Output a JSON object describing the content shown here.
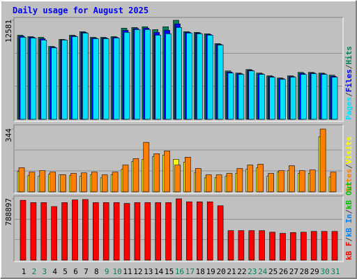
{
  "chart_data": [
    {
      "type": "bar",
      "title": "Daily usage for August 2025",
      "categories": [
        "1",
        "2",
        "3",
        "4",
        "5",
        "6",
        "7",
        "8",
        "9",
        "10",
        "11",
        "12",
        "13",
        "14",
        "15",
        "16",
        "17",
        "18",
        "19",
        "20",
        "21",
        "22",
        "23",
        "24",
        "25",
        "26",
        "27",
        "28",
        "29",
        "30",
        "31"
      ],
      "category_colors": [
        "#000000",
        "#00805c",
        "#00805c",
        "#000000",
        "#000000",
        "#000000",
        "#000000",
        "#000000",
        "#00805c",
        "#00805c",
        "#000000",
        "#000000",
        "#000000",
        "#000000",
        "#000000",
        "#00805c",
        "#00805c",
        "#000000",
        "#000000",
        "#000000",
        "#000000",
        "#000000",
        "#00805c",
        "#00805c",
        "#000000",
        "#000000",
        "#000000",
        "#000000",
        "#000000",
        "#00805c",
        "#00805c"
      ],
      "ylim": [
        0,
        12581
      ],
      "yticks": [
        12581
      ],
      "legend_separator": "/",
      "series": [
        {
          "name": "Hits",
          "color": "#00805c",
          "values": [
            10680,
            10500,
            10410,
            9260,
            10150,
            10680,
            11130,
            10410,
            10410,
            10500,
            11570,
            11660,
            11750,
            11390,
            11750,
            12581,
            11130,
            11040,
            10860,
            9610,
            6140,
            5870,
            6320,
            5870,
            5520,
            5250,
            5520,
            5960,
            5960,
            5870,
            5610
          ]
        },
        {
          "name": "Files",
          "color": "#0000ff",
          "values": [
            10550,
            10410,
            10240,
            9170,
            10100,
            10590,
            11040,
            10320,
            10320,
            10410,
            11300,
            11520,
            11570,
            11030,
            11300,
            12120,
            11040,
            10950,
            10770,
            9520,
            6000,
            5780,
            6230,
            5780,
            5430,
            5160,
            5430,
            5830,
            5870,
            5780,
            5470
          ]
        },
        {
          "name": "Pages",
          "color": "#00e0ff",
          "values": [
            10410,
            10320,
            10060,
            9080,
            10060,
            10500,
            10950,
            10240,
            10240,
            10320,
            11040,
            11390,
            11390,
            10680,
            10860,
            11660,
            10950,
            10860,
            10680,
            9430,
            5870,
            5700,
            6140,
            5700,
            5340,
            5070,
            5340,
            5700,
            5790,
            5700,
            5340
          ]
        }
      ]
    },
    {
      "type": "bar",
      "ylim": [
        0,
        344
      ],
      "yticks": [
        344
      ],
      "legend_separator": "/",
      "series": [
        {
          "name": "Visits",
          "color": "#ffff00",
          "values": [
            112,
            89,
            85,
            97,
            93,
            89,
            85,
            93,
            77,
            93,
            124,
            166,
            178,
            194,
            201,
            178,
            163,
            104,
            77,
            77,
            85,
            101,
            124,
            132,
            85,
            108,
            116,
            101,
            101,
            302,
            81
          ]
        },
        {
          "name": "Sites",
          "color": "#ff8000",
          "values": [
            132,
            108,
            116,
            108,
            93,
            101,
            104,
            108,
            93,
            108,
            147,
            182,
            271,
            209,
            224,
            147,
            190,
            128,
            93,
            93,
            101,
            128,
            147,
            151,
            101,
            116,
            143,
            116,
            120,
            344,
            108
          ]
        }
      ]
    },
    {
      "type": "bar",
      "ylim": [
        0,
        788897
      ],
      "yticks": [
        788897
      ],
      "legend_separator": "/",
      "series": [
        {
          "name": "kB Out",
          "color": "#00c000",
          "values": [
            0,
            0,
            0,
            0,
            0,
            0,
            0,
            0,
            0,
            0,
            0,
            0,
            0,
            0,
            0,
            0,
            0,
            0,
            0,
            0,
            0,
            0,
            0,
            0,
            0,
            0,
            0,
            0,
            0,
            0,
            0
          ]
        },
        {
          "name": "kB In",
          "color": "#0080ff",
          "values": [
            0,
            0,
            0,
            0,
            0,
            0,
            0,
            0,
            0,
            0,
            0,
            0,
            0,
            0,
            0,
            0,
            0,
            0,
            0,
            0,
            0,
            0,
            0,
            0,
            0,
            0,
            0,
            0,
            0,
            0,
            0
          ]
        },
        {
          "name": "kB F",
          "color": "#ff0000",
          "values": [
            770000,
            740000,
            740000,
            690000,
            740000,
            775000,
            780000,
            740000,
            740000,
            740000,
            730000,
            740000,
            740000,
            740000,
            740000,
            788897,
            750000,
            750000,
            750000,
            700000,
            380000,
            380000,
            380000,
            380000,
            360000,
            345000,
            355000,
            360000,
            370000,
            370000,
            370000
          ]
        }
      ]
    }
  ]
}
